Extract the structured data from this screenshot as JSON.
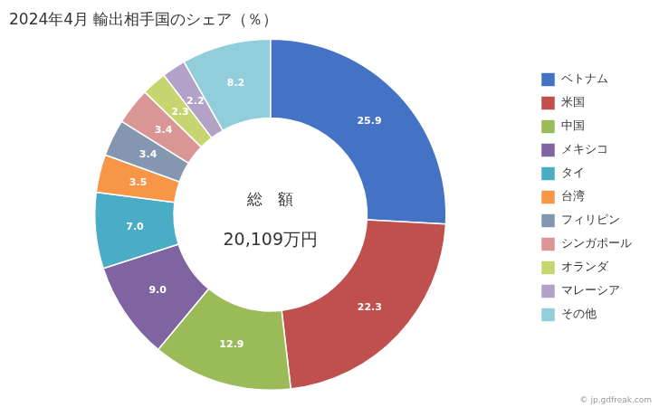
{
  "chart_data": {
    "type": "doughnut",
    "title": "2024年4月 輸出相手国のシェア（％）",
    "categories": [
      "ベトナム",
      "米国",
      "中国",
      "メキシコ",
      "タイ",
      "台湾",
      "フィリピン",
      "シンガポール",
      "オランダ",
      "マレーシア",
      "その他"
    ],
    "values": [
      25.9,
      22.3,
      12.9,
      9.0,
      7.0,
      3.5,
      3.4,
      3.4,
      2.3,
      2.2,
      8.2
    ],
    "value_labels": [
      "25.9",
      "22.3",
      "12.9",
      "9.0",
      "7.0",
      "3.5",
      "3.4",
      "3.4",
      "2.3",
      "2.2",
      "8.2"
    ],
    "colors": [
      "#4472C4",
      "#C0504D",
      "#9BBB59",
      "#8064A2",
      "#4BACC6",
      "#F79646",
      "#8496B0",
      "#D99694",
      "#C6D56F",
      "#B3A2C7",
      "#92CDDC"
    ],
    "data_labels": true,
    "legend": "right",
    "annotations": [
      "総　額",
      "20,109万円",
      "© jp.gdfreak.com"
    ]
  }
}
